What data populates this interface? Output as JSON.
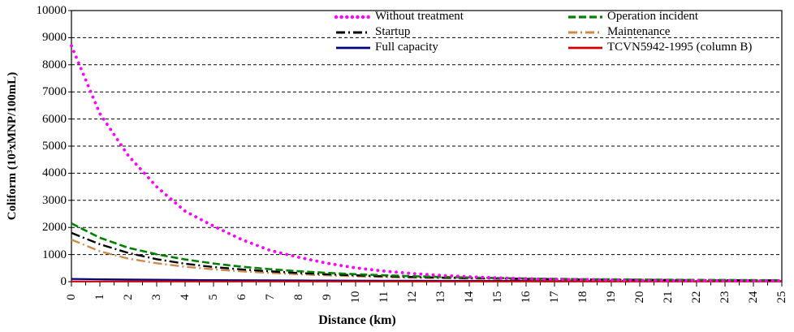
{
  "chart_data": {
    "type": "line",
    "title": "",
    "xlabel": "Distance (km)",
    "ylabel": "Coliform (10³xMNP/100mL)",
    "xlim": [
      0,
      25
    ],
    "ylim": [
      0,
      10000
    ],
    "x_tick_step": 1,
    "x_minor_tick_step": 0.5,
    "y_tick_step": 1000,
    "y_ticks": [
      0,
      1000,
      2000,
      3000,
      4000,
      5000,
      6000,
      7000,
      8000,
      9000,
      10000
    ],
    "x_ticks": [
      0,
      1,
      2,
      3,
      4,
      5,
      6,
      7,
      8,
      9,
      10,
      11,
      12,
      13,
      14,
      15,
      16,
      17,
      18,
      19,
      20,
      21,
      22,
      23,
      24,
      25
    ],
    "grid": "horizontal dashed",
    "legend_position": "top inside, 2 columns",
    "plot_border": "#000000",
    "background": "#ffffff",
    "x": [
      0,
      1,
      2,
      3,
      4,
      5,
      6,
      7,
      8,
      9,
      10,
      11,
      12,
      13,
      14,
      15,
      16,
      17,
      18,
      19,
      20,
      21,
      22,
      23,
      24,
      25
    ],
    "series": [
      {
        "name": "Without treatment",
        "color": "#FF00FF",
        "style": "dotted",
        "values": [
          8700,
          6200,
          4650,
          3500,
          2600,
          2050,
          1550,
          1150,
          900,
          680,
          510,
          390,
          300,
          230,
          180,
          140,
          110,
          90,
          75,
          62,
          52,
          45,
          40,
          36,
          33,
          30
        ]
      },
      {
        "name": "Operation incident",
        "color": "#008000",
        "style": "dashed",
        "values": [
          2150,
          1620,
          1250,
          1010,
          820,
          670,
          550,
          460,
          385,
          325,
          275,
          235,
          202,
          175,
          152,
          133,
          117,
          104,
          93,
          84,
          77,
          71,
          65,
          61,
          57,
          53
        ]
      },
      {
        "name": "Startup",
        "color": "#000000",
        "style": "dash-dot",
        "values": [
          1800,
          1380,
          1060,
          830,
          660,
          540,
          450,
          380,
          320,
          272,
          233,
          200,
          173,
          151,
          132,
          117,
          104,
          93,
          84,
          76,
          69,
          63,
          58,
          54,
          50,
          47
        ]
      },
      {
        "name": "Maintenance",
        "color": "#CC8A4D",
        "style": "dash-dot",
        "values": [
          1550,
          1120,
          850,
          680,
          550,
          455,
          380,
          322,
          273,
          233,
          200,
          173,
          150,
          132,
          117,
          104,
          93,
          84,
          76,
          69,
          63,
          58,
          54,
          50,
          47,
          44
        ]
      },
      {
        "name": "Full capacity",
        "color": "#000080",
        "style": "solid",
        "values": [
          100,
          88,
          78,
          70,
          63,
          57,
          52,
          48,
          44,
          41,
          38,
          35,
          33,
          31,
          29,
          28,
          26,
          25,
          24,
          23,
          22,
          21,
          20,
          20,
          19,
          19
        ]
      },
      {
        "name": "TCVN5942-1995 (column B)",
        "color": "#CC0000",
        "style": "solid",
        "values": [
          10,
          10,
          10,
          10,
          10,
          10,
          10,
          10,
          10,
          10,
          10,
          10,
          10,
          10,
          10,
          10,
          10,
          10,
          10,
          10,
          10,
          10,
          10,
          10,
          10,
          10
        ]
      }
    ]
  }
}
